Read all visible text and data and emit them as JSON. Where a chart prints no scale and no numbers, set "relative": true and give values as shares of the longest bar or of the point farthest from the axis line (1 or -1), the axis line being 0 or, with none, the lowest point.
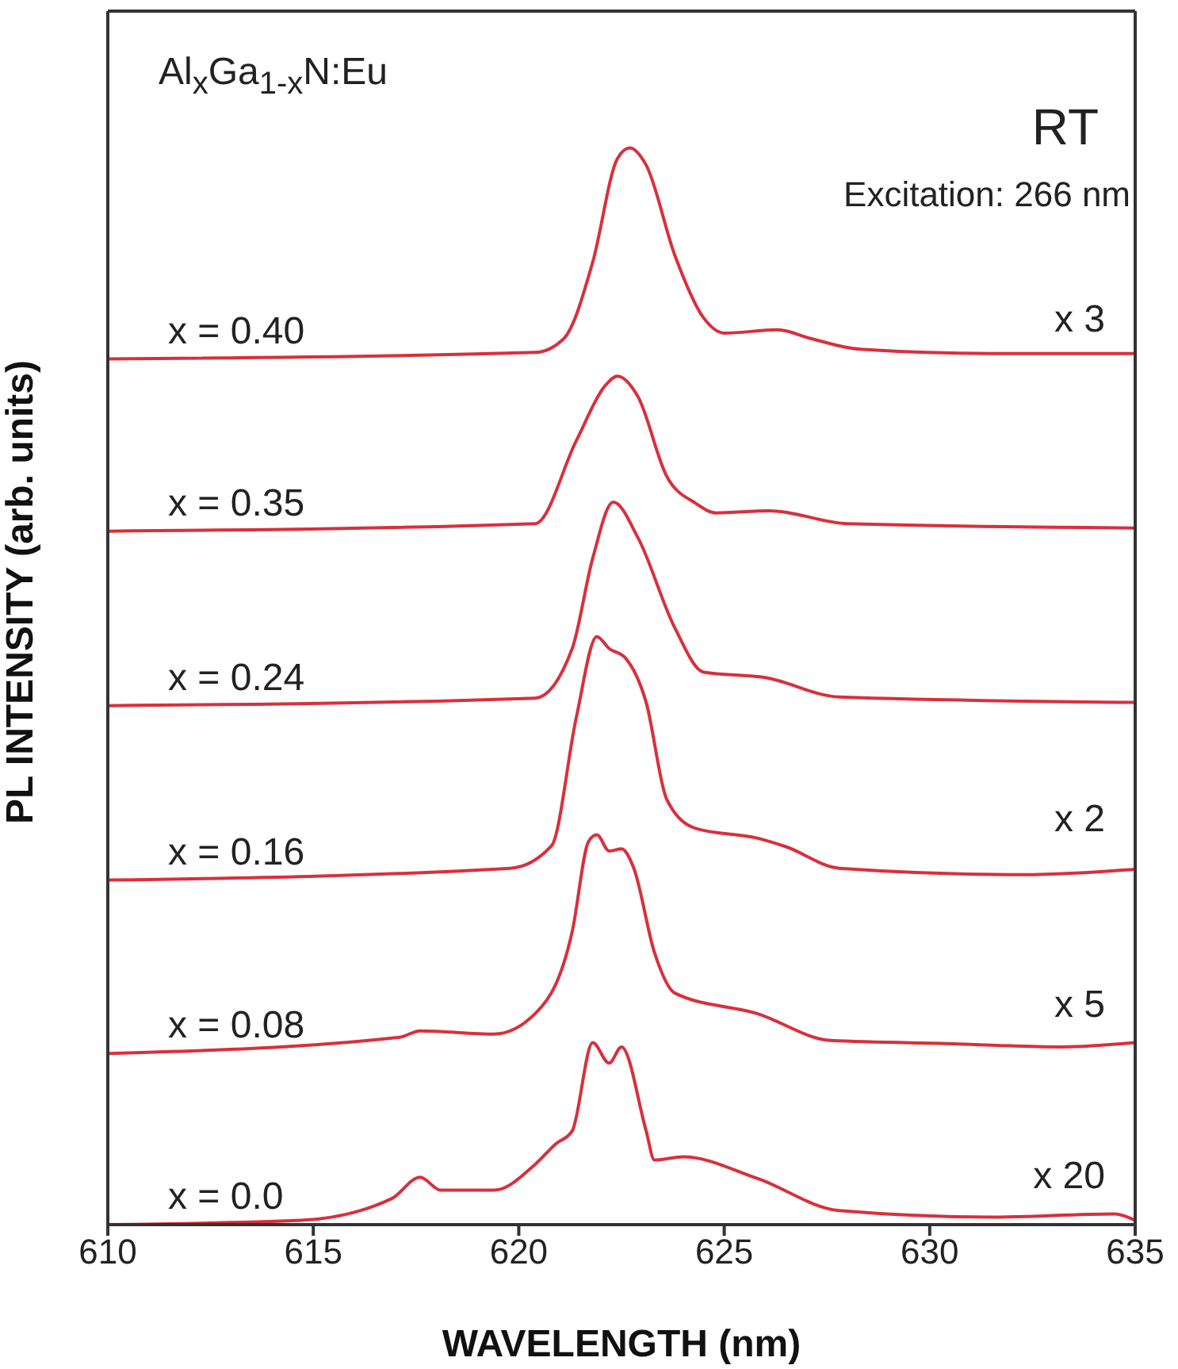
{
  "chart_data": {
    "type": "line",
    "xlabel": "WAVELENGTH (nm)",
    "ylabel": "PL INTENSITY (arb. units)",
    "relative": true,
    "xlim": [
      610,
      635
    ],
    "xticks": [
      610,
      615,
      620,
      625,
      630,
      635
    ],
    "legend": false,
    "marker": "none",
    "line_style": "solid",
    "annotations": [
      "Al$_{x}$Ga$_{1-x}$N:Eu",
      "RT",
      "Excitation: 266 nm",
      "x 3",
      "x 2",
      "x 5",
      "x 20"
    ],
    "series": [
      {
        "name": "x = 0.40",
        "color": "#d8303c",
        "x": [
          610,
          620.4,
          621.1,
          621.8,
          622.4,
          622.7,
          623.1,
          623.8,
          624.5,
          625,
          626.3,
          627.1,
          628.3,
          631.5,
          635
        ],
        "values": [
          0.804,
          0.81,
          0.823,
          0.894,
          0.99,
          1,
          0.984,
          0.9,
          0.842,
          0.828,
          0.831,
          0.823,
          0.813,
          0.809,
          0.809
        ]
      },
      {
        "name": "x = 0.35",
        "color": "#d8303c",
        "x": [
          610,
          620.4,
          621.4,
          622.1,
          622.4,
          622.9,
          623.6,
          624.3,
          624.8,
          626.1,
          628,
          635
        ],
        "values": [
          0.644,
          0.651,
          0.728,
          0.779,
          0.788,
          0.769,
          0.695,
          0.67,
          0.661,
          0.663,
          0.651,
          0.647
        ]
      },
      {
        "name": "x = 0.24",
        "color": "#d8303c",
        "x": [
          610,
          620.4,
          621.3,
          621.8,
          622.3,
          622.9,
          623.8,
          624.5,
          626,
          627.8,
          635
        ],
        "values": [
          0.482,
          0.489,
          0.535,
          0.619,
          0.671,
          0.638,
          0.554,
          0.513,
          0.508,
          0.49,
          0.485
        ]
      },
      {
        "name": "x = 0.16",
        "color": "#d8303c",
        "x": [
          610,
          619.8,
          620.8,
          621.4,
          621.9,
          622.2,
          622.6,
          623.1,
          623.6,
          624.3,
          625.8,
          626.5,
          627.8,
          632.3,
          635
        ],
        "values": [
          0.32,
          0.331,
          0.352,
          0.471,
          0.546,
          0.535,
          0.526,
          0.485,
          0.395,
          0.368,
          0.359,
          0.351,
          0.331,
          0.325,
          0.33
        ]
      },
      {
        "name": "x = 0.08",
        "color": "#d8303c",
        "x": [
          610,
          617.1,
          617.6,
          619.4,
          620.4,
          621.3,
          621.7,
          621.9,
          622.2,
          622.5,
          622.8,
          623.3,
          623.8,
          625.8,
          627.6,
          630.6,
          633.2,
          635
        ],
        "values": [
          0.159,
          0.174,
          0.18,
          0.177,
          0.196,
          0.272,
          0.356,
          0.362,
          0.347,
          0.349,
          0.331,
          0.253,
          0.215,
          0.196,
          0.171,
          0.168,
          0.165,
          0.169
        ]
      },
      {
        "name": "x = 0.0",
        "color": "#d8303c",
        "x": [
          610,
          614.7,
          616.9,
          617.6,
          618.1,
          619.4,
          620.4,
          620.9,
          621.3,
          621.8,
          622.2,
          622.5,
          623.1,
          623.3,
          624,
          625.8,
          627.8,
          631.5,
          634.5,
          635
        ],
        "values": [
          0,
          0.004,
          0.024,
          0.044,
          0.032,
          0.032,
          0.056,
          0.075,
          0.087,
          0.169,
          0.15,
          0.165,
          0.087,
          0.06,
          0.063,
          0.043,
          0.013,
          0.007,
          0.01,
          0.004
        ]
      }
    ]
  }
}
